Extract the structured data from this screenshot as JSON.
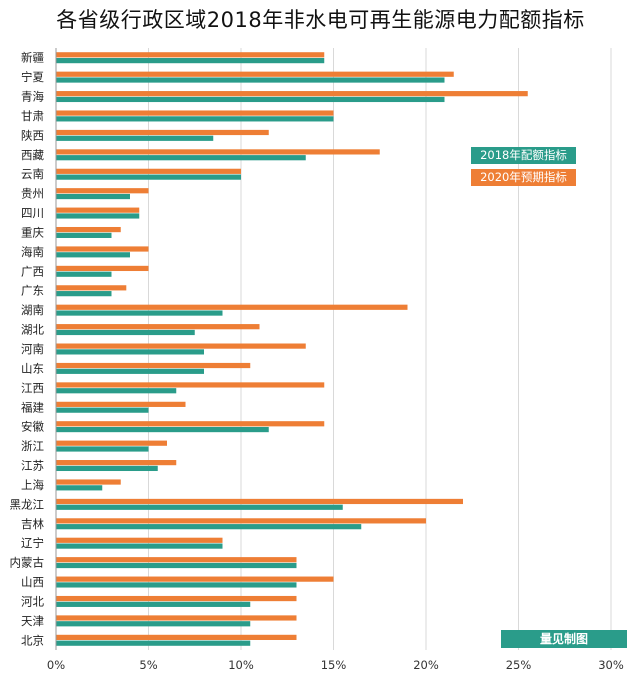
{
  "chart_data": {
    "type": "bar",
    "orientation": "horizontal",
    "title": "各省级行政区域2018年非水电可再生能源电力配额指标",
    "xlabel": "",
    "ylabel": "",
    "xlim": [
      0,
      30
    ],
    "x_ticks": [
      "0%",
      "5%",
      "10%",
      "15%",
      "20%",
      "25%",
      "30%"
    ],
    "grid": true,
    "legend_position": "right",
    "categories": [
      "新疆",
      "宁夏",
      "青海",
      "甘肃",
      "陕西",
      "西藏",
      "云南",
      "贵州",
      "四川",
      "重庆",
      "海南",
      "广西",
      "广东",
      "湖南",
      "湖北",
      "河南",
      "山东",
      "江西",
      "福建",
      "安徽",
      "浙江",
      "江苏",
      "上海",
      "黑龙江",
      "吉林",
      "辽宁",
      "内蒙古",
      "山西",
      "河北",
      "天津",
      "北京"
    ],
    "series": [
      {
        "name": "2018年配额指标",
        "color": "#2a9c8a",
        "values": [
          14.5,
          21.0,
          21.0,
          15.0,
          8.5,
          13.5,
          10.0,
          4.0,
          4.5,
          3.0,
          4.0,
          3.0,
          3.0,
          9.0,
          7.5,
          8.0,
          8.0,
          6.5,
          5.0,
          11.5,
          5.0,
          5.5,
          2.5,
          15.5,
          16.5,
          9.0,
          13.0,
          13.0,
          10.5,
          10.5,
          10.5
        ]
      },
      {
        "name": "2020年预期指标",
        "color": "#ee7e35",
        "values": [
          14.5,
          21.5,
          25.5,
          15.0,
          11.5,
          17.5,
          10.0,
          5.0,
          4.5,
          3.5,
          5.0,
          5.0,
          3.8,
          19.0,
          11.0,
          13.5,
          10.5,
          14.5,
          7.0,
          14.5,
          6.0,
          6.5,
          3.5,
          22.0,
          20.0,
          9.0,
          13.0,
          15.0,
          13.0,
          13.0,
          13.0
        ]
      }
    ]
  },
  "brand": {
    "label": "量见制图",
    "color": "#2a9c8a"
  }
}
